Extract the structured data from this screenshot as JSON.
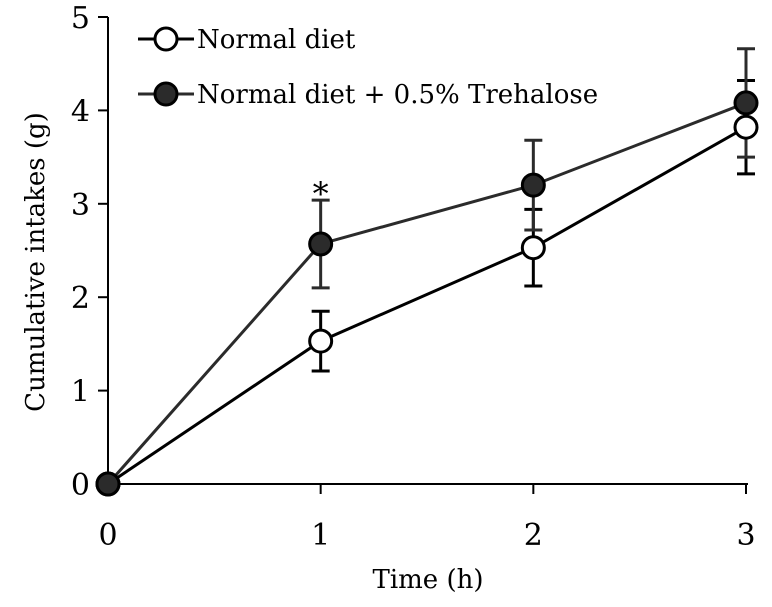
{
  "chart_data": {
    "type": "line",
    "xlabel": "Time (h)",
    "ylabel": "Cumulative intakes  (g)",
    "xlim": [
      0,
      3
    ],
    "ylim": [
      0,
      5
    ],
    "xticks": [
      "0",
      "1",
      "2",
      "3"
    ],
    "yticks": [
      "0",
      "1",
      "2",
      "3",
      "4",
      "5"
    ],
    "grid": false,
    "legend_position": "top-left",
    "series": [
      {
        "name": "Normal diet",
        "marker": "open-circle",
        "color": "#000000",
        "x": [
          0,
          1,
          2,
          3
        ],
        "y": [
          0,
          1.53,
          2.53,
          3.82
        ],
        "error": [
          0,
          0.32,
          0.41,
          0.5
        ]
      },
      {
        "name": "Normal diet + 0.5% Trehalose",
        "marker": "filled-circle",
        "color": "#2b2b2b",
        "x": [
          0,
          1,
          2,
          3
        ],
        "y": [
          0,
          2.57,
          3.2,
          4.08
        ],
        "error": [
          0,
          0.47,
          0.48,
          0.58
        ]
      }
    ],
    "annotations": [
      {
        "text": "*",
        "x": 1,
        "y": 3.2
      }
    ]
  }
}
